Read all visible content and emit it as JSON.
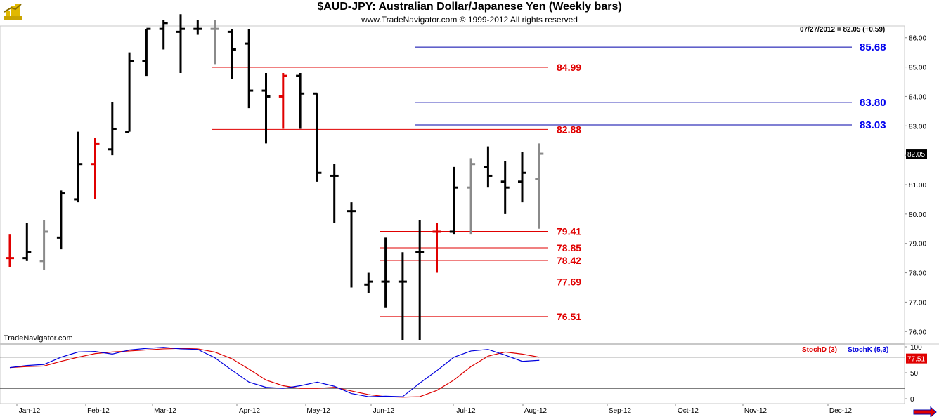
{
  "header": {
    "title": "$AUD-JPY:  Australian Dollar/Japanese Yen  (Weekly bars)",
    "subtitle": "www.TradeNavigator.com © 1999-2012 All rights reserved",
    "watermark": "TradeNavigator.com",
    "last_info": "07/27/2012 = 82.05 (+0.59)"
  },
  "colors": {
    "up_bar": "#000000",
    "neutral_bar": "#8a8a8a",
    "highlight_bar": "#e00000",
    "support_line": "#e00000",
    "resistance_line": "#0000aa",
    "stoch_d": "#dd0000",
    "stoch_k": "#0000dd"
  },
  "chart_data": [
    {
      "type": "ohlc",
      "title": "$AUD-JPY:  Australian Dollar/Japanese Yen  (Weekly bars)",
      "ylim": [
        75.6,
        86.4
      ],
      "y_ticks": [
        "86.00",
        "85.00",
        "84.00",
        "83.00",
        "82.00",
        "81.00",
        "80.00",
        "79.00",
        "78.00",
        "77.00",
        "76.00"
      ],
      "x_ticks": [
        "Jan-12",
        "Feb-12",
        "Mar-12",
        "Apr-12",
        "May-12",
        "Jun-12",
        "Jul-12",
        "Aug-12",
        "Sep-12",
        "Oct-12",
        "Nov-12",
        "Dec-12"
      ],
      "last_value": "82.05",
      "bars": [
        {
          "o": 78.5,
          "h": 79.3,
          "l": 78.2,
          "c": 78.5,
          "color": "red"
        },
        {
          "o": 78.5,
          "h": 79.7,
          "l": 78.4,
          "c": 78.7,
          "color": "black"
        },
        {
          "o": 78.4,
          "h": 79.8,
          "l": 78.1,
          "c": 79.4,
          "color": "gray"
        },
        {
          "o": 79.2,
          "h": 80.8,
          "l": 78.8,
          "c": 80.7,
          "color": "black"
        },
        {
          "o": 80.5,
          "h": 82.8,
          "l": 80.4,
          "c": 81.7,
          "color": "black"
        },
        {
          "o": 81.7,
          "h": 82.6,
          "l": 80.5,
          "c": 82.4,
          "color": "red"
        },
        {
          "o": 82.2,
          "h": 83.8,
          "l": 82.0,
          "c": 82.9,
          "color": "black"
        },
        {
          "o": 82.8,
          "h": 85.5,
          "l": 82.8,
          "c": 85.2,
          "color": "black"
        },
        {
          "o": 85.2,
          "h": 86.3,
          "l": 84.7,
          "c": 86.3,
          "color": "black"
        },
        {
          "o": 86.3,
          "h": 86.6,
          "l": 85.6,
          "c": 86.5,
          "color": "black"
        },
        {
          "o": 86.2,
          "h": 86.8,
          "l": 84.8,
          "c": 86.3,
          "color": "black"
        },
        {
          "o": 86.3,
          "h": 86.6,
          "l": 86.1,
          "c": 86.3,
          "color": "black"
        },
        {
          "o": 86.3,
          "h": 86.6,
          "l": 85.1,
          "c": 86.3,
          "color": "gray"
        },
        {
          "o": 86.2,
          "h": 86.3,
          "l": 84.6,
          "c": 85.6,
          "color": "black"
        },
        {
          "o": 85.8,
          "h": 86.3,
          "l": 83.6,
          "c": 84.2,
          "color": "black"
        },
        {
          "o": 84.2,
          "h": 84.8,
          "l": 82.4,
          "c": 84.0,
          "color": "black"
        },
        {
          "o": 84.0,
          "h": 84.8,
          "l": 82.9,
          "c": 84.7,
          "color": "red"
        },
        {
          "o": 84.7,
          "h": 84.8,
          "l": 82.9,
          "c": 84.1,
          "color": "black"
        },
        {
          "o": 84.1,
          "h": 84.1,
          "l": 81.1,
          "c": 81.4,
          "color": "black"
        },
        {
          "o": 81.3,
          "h": 81.7,
          "l": 79.7,
          "c": 81.3,
          "color": "black"
        },
        {
          "o": 80.1,
          "h": 80.4,
          "l": 77.5,
          "c": 80.1,
          "color": "black"
        },
        {
          "o": 77.6,
          "h": 78.0,
          "l": 77.3,
          "c": 77.7,
          "color": "black"
        },
        {
          "o": 77.7,
          "h": 79.2,
          "l": 76.8,
          "c": 77.7,
          "color": "black"
        },
        {
          "o": 77.7,
          "h": 78.7,
          "l": 75.7,
          "c": 77.7,
          "color": "black"
        },
        {
          "o": 78.7,
          "h": 79.8,
          "l": 75.7,
          "c": 78.7,
          "color": "black"
        },
        {
          "o": 79.4,
          "h": 79.7,
          "l": 78.0,
          "c": 79.4,
          "color": "red"
        },
        {
          "o": 79.4,
          "h": 81.6,
          "l": 79.3,
          "c": 80.9,
          "color": "black"
        },
        {
          "o": 80.9,
          "h": 81.9,
          "l": 79.3,
          "c": 81.7,
          "color": "gray"
        },
        {
          "o": 81.6,
          "h": 82.3,
          "l": 80.9,
          "c": 81.3,
          "color": "black"
        },
        {
          "o": 81.1,
          "h": 81.8,
          "l": 80.0,
          "c": 80.9,
          "color": "black"
        },
        {
          "o": 81.1,
          "h": 82.1,
          "l": 80.4,
          "c": 81.4,
          "color": "black"
        },
        {
          "o": 81.2,
          "h": 82.4,
          "l": 79.5,
          "c": 82.05,
          "color": "gray"
        }
      ],
      "levels": [
        {
          "label": "85.68",
          "value": 85.68,
          "kind": "resistance"
        },
        {
          "label": "84.99",
          "value": 84.99,
          "kind": "support"
        },
        {
          "label": "83.80",
          "value": 83.8,
          "kind": "resistance"
        },
        {
          "label": "83.03",
          "value": 83.03,
          "kind": "resistance"
        },
        {
          "label": "82.88",
          "value": 82.88,
          "kind": "support"
        },
        {
          "label": "79.41",
          "value": 79.41,
          "kind": "support"
        },
        {
          "label": "78.85",
          "value": 78.85,
          "kind": "support"
        },
        {
          "label": "78.42",
          "value": 78.42,
          "kind": "support"
        },
        {
          "label": "77.69",
          "value": 77.69,
          "kind": "support"
        },
        {
          "label": "76.51",
          "value": 76.51,
          "kind": "support"
        }
      ]
    },
    {
      "type": "line",
      "ylim": [
        0,
        100
      ],
      "y_ticks": [
        "100",
        "50",
        "0"
      ],
      "last_value": "77.51",
      "series": [
        {
          "name": "StochD (3)",
          "values": [
            60,
            62,
            63,
            72,
            80,
            87,
            90,
            92,
            94,
            96,
            97,
            96,
            90,
            77,
            57,
            36,
            25,
            20,
            20,
            22,
            15,
            8,
            4,
            3,
            4,
            16,
            36,
            62,
            82,
            90,
            86,
            80
          ]
        },
        {
          "name": "StochK (5,3)",
          "values": [
            60,
            64,
            66,
            80,
            90,
            91,
            86,
            94,
            97,
            99,
            96,
            95,
            79,
            55,
            32,
            22,
            20,
            25,
            32,
            24,
            10,
            4,
            5,
            4,
            30,
            54,
            80,
            92,
            95,
            84,
            72,
            74
          ]
        }
      ]
    }
  ]
}
